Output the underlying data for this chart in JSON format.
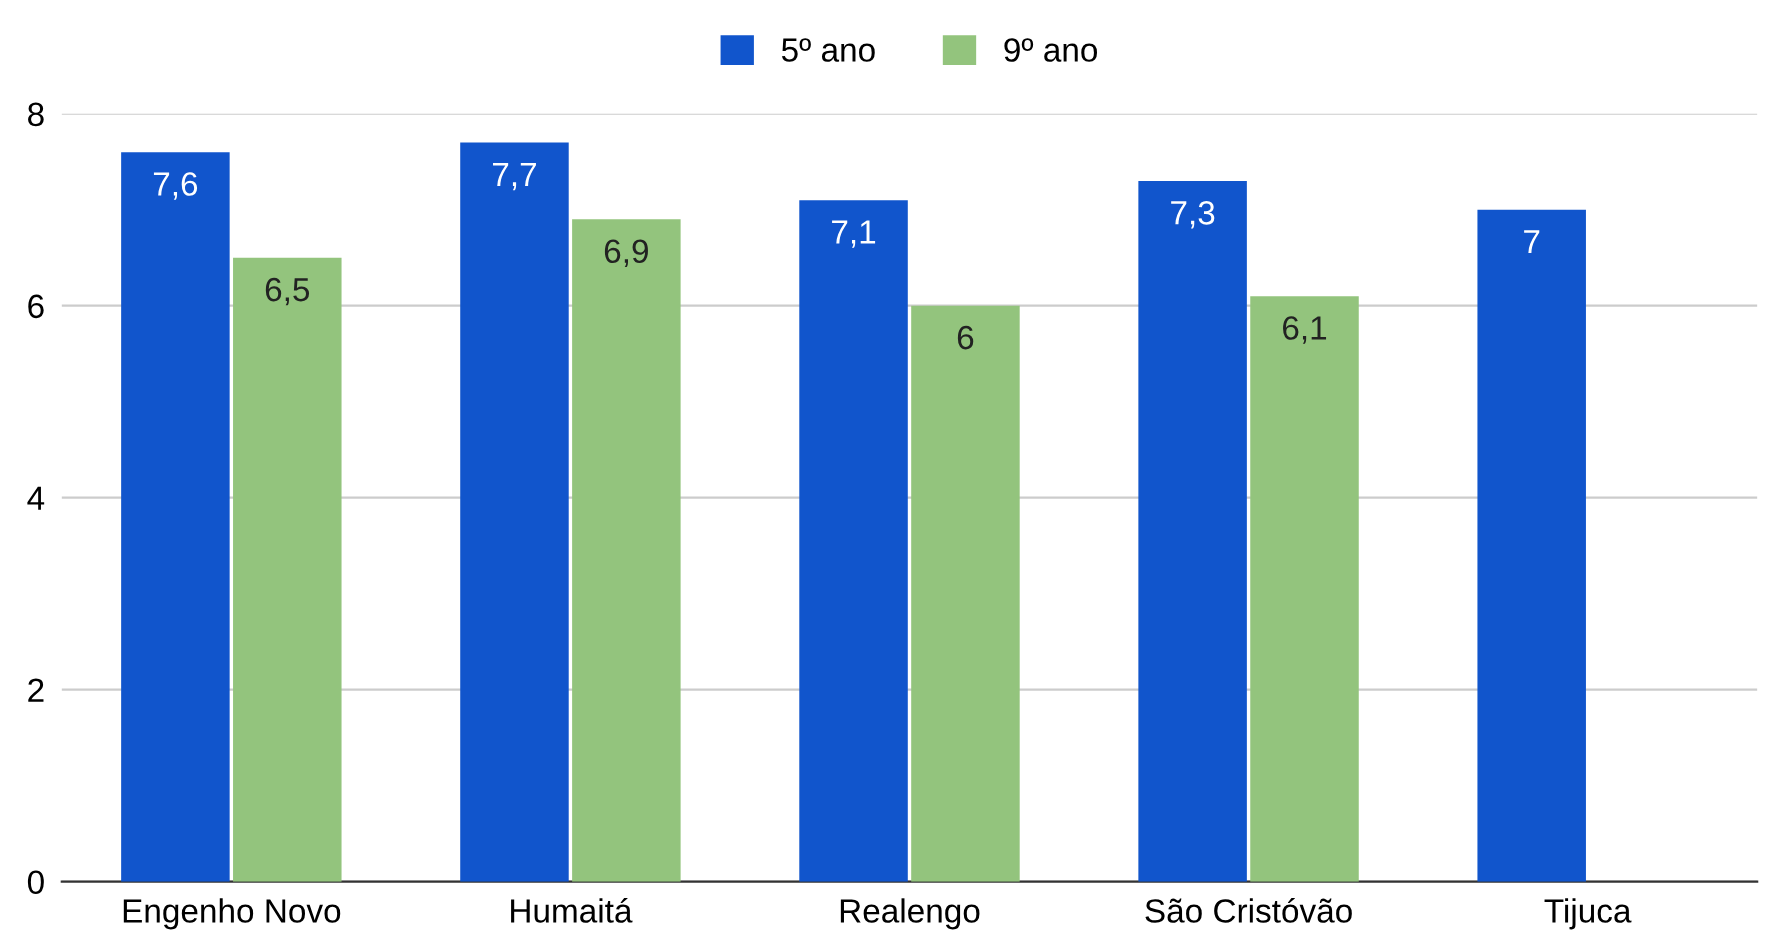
{
  "chart_data": {
    "type": "bar",
    "categories": [
      "Engenho Novo",
      "Humaitá",
      "Realengo",
      "São Cristóvão",
      "Tijuca"
    ],
    "series": [
      {
        "name": "5º ano",
        "color": "#1155cc",
        "values": [
          7.6,
          7.7,
          7.1,
          7.3,
          7
        ],
        "value_labels": [
          "7,6",
          "7,7",
          "7,1",
          "7,3",
          "7"
        ]
      },
      {
        "name": "9º ano",
        "color": "#93c47d",
        "values": [
          6.5,
          6.9,
          6,
          6.1,
          null
        ],
        "value_labels": [
          "6,5",
          "6,9",
          "6",
          "6,1",
          null
        ]
      }
    ],
    "ylim": [
      0,
      8
    ],
    "yticks": [
      0,
      2,
      4,
      6,
      8
    ],
    "grid": "y",
    "legend": "top"
  }
}
